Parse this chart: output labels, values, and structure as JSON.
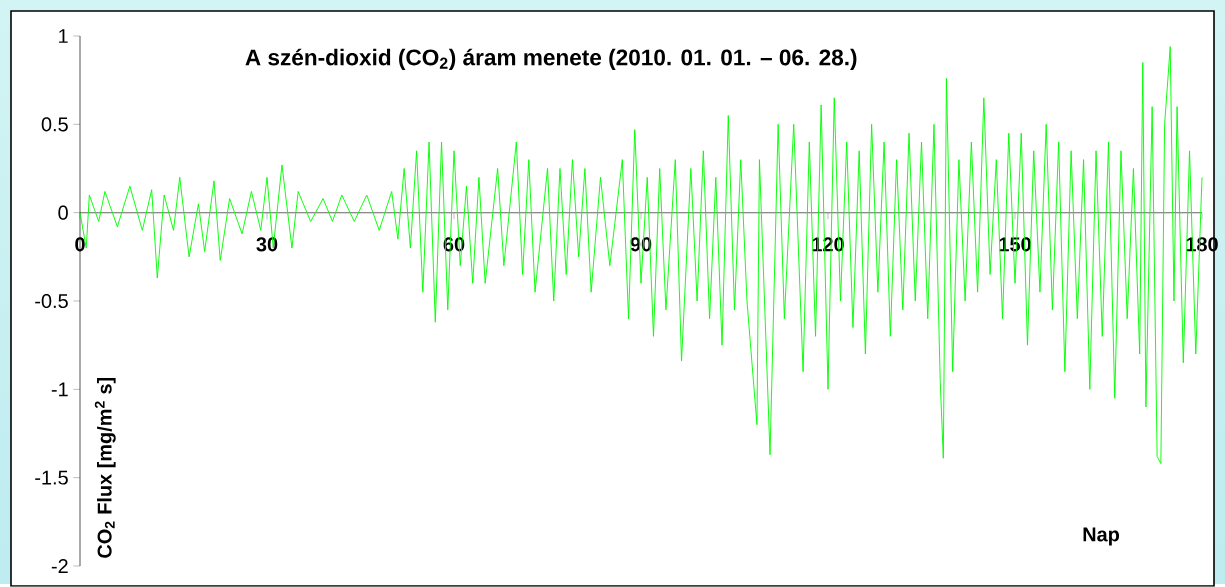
{
  "chart_data": {
    "type": "line",
    "title": "A szén-dioxid (CO$_{2}$) áram menete (2010. 01. 01. – 06. 28.)",
    "xlabel": "Nap",
    "ylabel": "CO$_{2}$ Flux [mg/m$^{2}$ s]",
    "color": "#00ff00",
    "x": [
      0,
      1,
      1.5,
      3,
      4,
      6,
      8,
      10,
      11.5,
      12.4,
      13.5,
      15,
      16,
      17.5,
      19,
      20,
      21.5,
      22.5,
      24,
      26,
      27.5,
      29,
      30,
      31,
      32.4,
      34,
      35,
      37,
      39,
      40.5,
      42,
      44,
      46,
      48,
      50,
      51,
      52,
      53,
      54,
      55,
      56,
      57,
      58,
      59,
      60,
      61,
      62,
      63,
      64,
      65,
      67,
      68,
      70,
      71,
      72,
      73,
      75,
      76,
      77,
      78,
      79,
      80,
      81,
      82,
      83.5,
      85,
      87,
      88,
      89,
      90,
      91,
      92,
      93,
      94,
      95.5,
      96.5,
      98,
      99,
      100,
      101,
      102,
      103,
      104,
      105,
      106,
      107,
      108.6,
      109,
      110.7,
      112,
      113,
      114.5,
      116,
      117,
      118,
      118.9,
      120,
      121,
      122,
      123,
      124,
      125,
      126,
      127,
      128,
      129,
      130,
      131,
      132,
      133,
      134,
      135,
      136,
      137,
      138,
      138.5,
      139,
      140,
      141,
      142,
      143,
      144,
      145,
      146,
      147,
      148,
      149,
      150,
      151,
      152,
      153,
      154,
      155,
      156,
      157,
      158,
      159,
      160,
      161,
      162,
      163,
      164,
      165,
      166,
      167,
      168,
      169,
      170,
      170.5,
      171,
      172,
      172.8,
      173.4,
      174,
      174.9,
      175.5,
      176,
      177,
      178,
      179,
      180
    ],
    "values": [
      0,
      -0.2,
      0.1,
      -0.05,
      0.12,
      -0.08,
      0.15,
      -0.1,
      0.13,
      -0.37,
      0.1,
      -0.1,
      0.2,
      -0.25,
      0.05,
      -0.22,
      0.18,
      -0.27,
      0.08,
      -0.12,
      0.12,
      -0.1,
      0.2,
      -0.2,
      0.27,
      -0.2,
      0.12,
      -0.05,
      0.08,
      -0.05,
      0.1,
      -0.05,
      0.1,
      -0.1,
      0.12,
      -0.15,
      0.25,
      -0.2,
      0.35,
      -0.45,
      0.4,
      -0.62,
      0.4,
      -0.55,
      0.35,
      -0.3,
      0.15,
      -0.4,
      0.2,
      -0.4,
      0.25,
      -0.3,
      0.4,
      -0.35,
      0.3,
      -0.45,
      0.25,
      -0.5,
      0.25,
      -0.35,
      0.3,
      -0.25,
      0.25,
      -0.45,
      0.2,
      -0.3,
      0.3,
      -0.6,
      0.47,
      -0.4,
      0.2,
      -0.7,
      0.25,
      -0.55,
      0.3,
      -0.84,
      0.25,
      -0.5,
      0.35,
      -0.6,
      0.2,
      -0.75,
      0.55,
      -0.55,
      0.3,
      -0.5,
      -1.2,
      0.3,
      -1.37,
      0.5,
      -0.6,
      0.5,
      -0.9,
      0.4,
      -0.7,
      0.61,
      -1.0,
      0.65,
      -0.5,
      0.4,
      -0.65,
      0.35,
      -0.8,
      0.5,
      -0.45,
      0.4,
      -0.7,
      0.3,
      -0.55,
      0.45,
      -0.5,
      0.4,
      -0.6,
      0.5,
      -0.95,
      -1.39,
      0.76,
      -0.9,
      0.3,
      -0.5,
      0.4,
      -0.45,
      0.65,
      -0.35,
      0.3,
      -0.6,
      0.45,
      -0.4,
      0.45,
      -0.75,
      0.35,
      -0.45,
      0.5,
      -0.55,
      0.4,
      -0.9,
      0.35,
      -0.6,
      0.3,
      -1.0,
      0.35,
      -0.7,
      0.4,
      -1.05,
      0.35,
      -0.6,
      0.25,
      -0.8,
      0.85,
      -1.1,
      0.6,
      -1.38,
      -1.42,
      0.5,
      0.94,
      -0.5,
      0.6,
      -0.85,
      0.35,
      -0.8,
      0.2
    ],
    "xlim": [
      0,
      180
    ],
    "ylim": [
      -2,
      1
    ],
    "xticks": [
      0,
      30,
      60,
      90,
      120,
      150,
      180
    ],
    "yticks": [
      -2,
      -1.5,
      -1,
      -0.5,
      0,
      0.5,
      1
    ]
  }
}
